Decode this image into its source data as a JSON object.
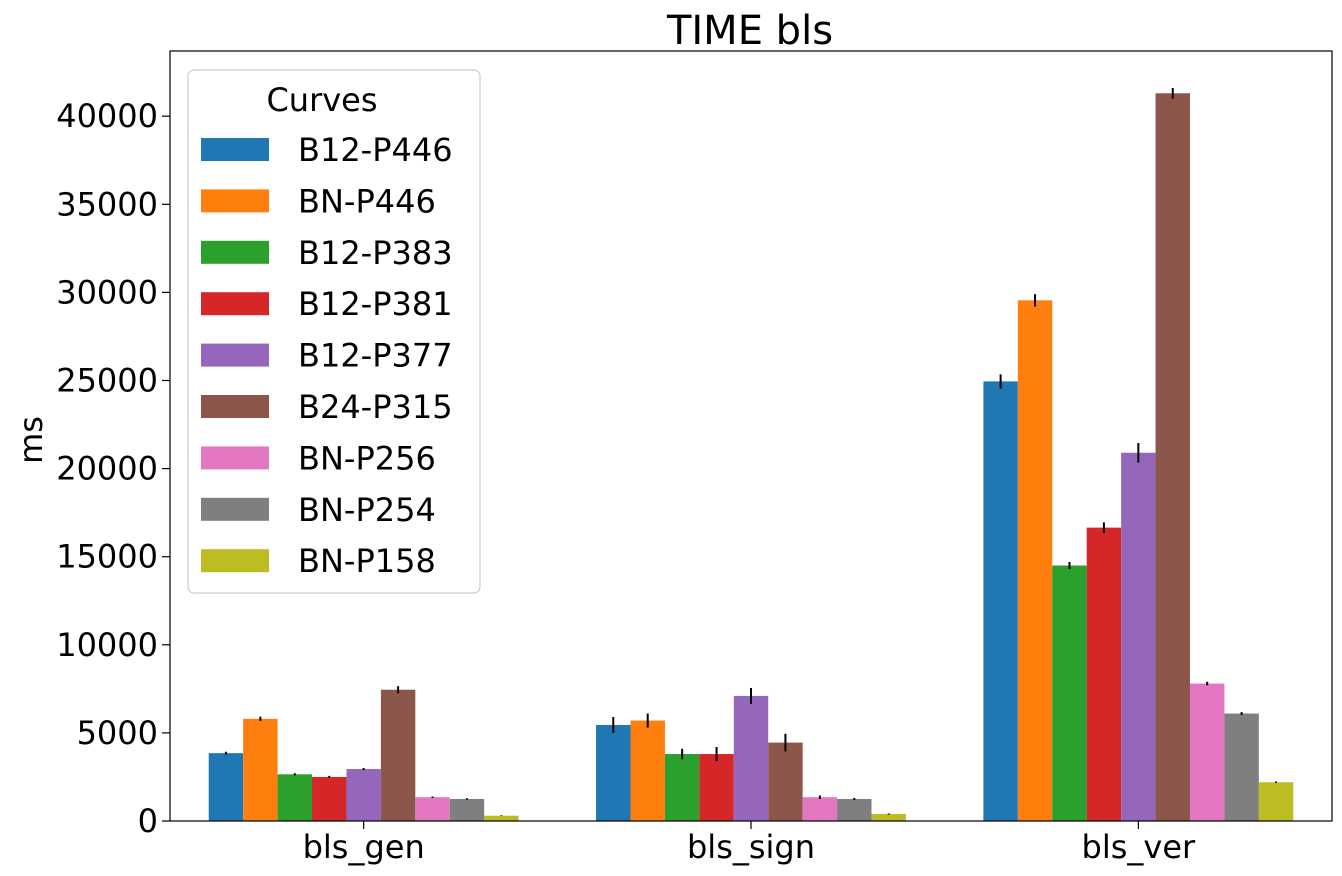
{
  "chart_data": {
    "type": "bar",
    "title": "TIME bls",
    "xlabel": "",
    "ylabel": "ms",
    "ylim": [
      0,
      43700
    ],
    "yticks": [
      0,
      5000,
      10000,
      15000,
      20000,
      25000,
      30000,
      35000,
      40000
    ],
    "categories": [
      "bls_gen",
      "bls_sign",
      "bls_ver"
    ],
    "legend": {
      "title": "Curves",
      "position": "upper-left"
    },
    "grid": false,
    "series": [
      {
        "name": "B12-P446",
        "color": "#1f77b4",
        "values": [
          3850,
          5450,
          24950
        ],
        "errors": [
          80,
          450,
          400
        ]
      },
      {
        "name": "BN-P446",
        "color": "#ff7f0e",
        "values": [
          5800,
          5700,
          29550
        ],
        "errors": [
          120,
          400,
          350
        ]
      },
      {
        "name": "B12-P383",
        "color": "#2ca02c",
        "values": [
          2650,
          3800,
          14500
        ],
        "errors": [
          60,
          300,
          200
        ]
      },
      {
        "name": "B12-P381",
        "color": "#d62728",
        "values": [
          2500,
          3800,
          16650
        ],
        "errors": [
          60,
          400,
          300
        ]
      },
      {
        "name": "B12-P377",
        "color": "#9467bd",
        "values": [
          2950,
          7100,
          20900
        ],
        "errors": [
          60,
          450,
          550
        ]
      },
      {
        "name": "B24-P315",
        "color": "#8c564b",
        "values": [
          7450,
          4450,
          41300
        ],
        "errors": [
          200,
          500,
          300
        ]
      },
      {
        "name": "BN-P256",
        "color": "#e377c2",
        "values": [
          1350,
          1350,
          7800
        ],
        "errors": [
          40,
          100,
          100
        ]
      },
      {
        "name": "BN-P254",
        "color": "#7f7f7f",
        "values": [
          1250,
          1250,
          6100
        ],
        "errors": [
          40,
          60,
          80
        ]
      },
      {
        "name": "BN-P158",
        "color": "#bcbd22",
        "values": [
          300,
          400,
          2200
        ],
        "errors": [
          20,
          30,
          40
        ]
      }
    ]
  }
}
